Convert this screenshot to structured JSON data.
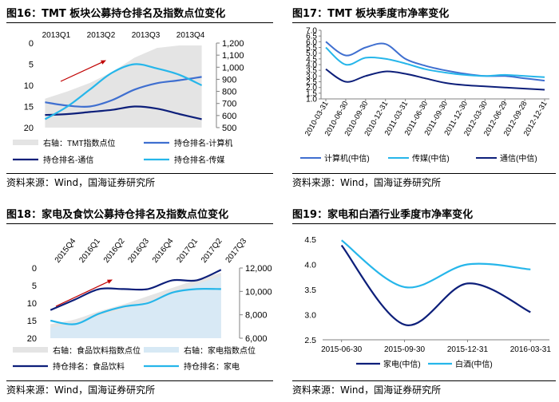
{
  "colors": {
    "dark_navy": "#0d1f7a",
    "blue": "#3f6fd0",
    "light_blue": "#26b6ea",
    "gray_fill": "#e4e4e4",
    "light_fill": "#d7e9f5",
    "arrow_red": "#c00000"
  },
  "source_text": "资料来源：Wind，国海证券研究所",
  "panels": [
    {
      "title": "图16：TMT 板块公募持仓排名及指数点位变化",
      "chart_data": {
        "type": "line",
        "x_labels": [
          "2013Q1",
          "2013Q2",
          "2013Q3",
          "2013Q4"
        ],
        "x": [
          0,
          1,
          2,
          3,
          4,
          5,
          6,
          7
        ],
        "ylim_left": [
          20,
          0
        ],
        "left_ticks": [
          "0",
          "5",
          "10",
          "15",
          "20"
        ],
        "ylim_right": [
          500,
          1200
        ],
        "right_ticks": [
          "500",
          "600",
          "700",
          "800",
          "900",
          "1,000",
          "1,100",
          "1,200"
        ],
        "area_series": {
          "name": "右轴：TMT指数点位",
          "values": [
            740,
            800,
            870,
            960,
            1080,
            1160,
            1180,
            1180
          ]
        },
        "series": [
          {
            "name": "持仓排名-计算机",
            "color_key": "blue",
            "values": [
              14,
              14.8,
              15,
              13.5,
              11,
              9.5,
              8.8,
              8
            ]
          },
          {
            "name": "持仓排名-通信",
            "color_key": "dark_navy",
            "values": [
              17,
              16.8,
              16.3,
              15.8,
              15,
              15.5,
              16.8,
              18
            ]
          },
          {
            "name": "持仓排名-传媒",
            "color_key": "light_blue",
            "values": [
              18,
              15,
              11,
              7,
              5,
              6,
              7.5,
              10
            ]
          }
        ]
      },
      "legend": [
        "右轴：TMT指数点位",
        "持仓排名-计算机",
        "持仓排名-通信",
        "持仓排名-传媒"
      ]
    },
    {
      "title": "图17：TMT 板块季度市净率变化",
      "chart_data": {
        "type": "line",
        "categories": [
          "2010-03-31",
          "2010-06-30",
          "2010-09-30",
          "2010-12-31",
          "2011-03-31",
          "2011-06-30",
          "2011-09-30",
          "2011-12-30",
          "2012-03-30",
          "2012-06-29",
          "2012-09-28",
          "2012-12-31"
        ],
        "ylim": [
          1.0,
          7.0
        ],
        "y_ticks": [
          "1.0",
          "1.5",
          "2.0",
          "2.5",
          "3.0",
          "3.5",
          "4.0",
          "4.5",
          "5.0",
          "5.5",
          "6.0",
          "6.5",
          "7.0"
        ],
        "series": [
          {
            "name": "计算机(中信)",
            "color_key": "blue",
            "values": [
              6.0,
              4.8,
              5.5,
              5.8,
              4.5,
              3.9,
              3.5,
              3.2,
              3.0,
              3.0,
              2.8,
              2.6
            ]
          },
          {
            "name": "传媒(中信)",
            "color_key": "light_blue",
            "values": [
              5.5,
              4.0,
              4.6,
              4.5,
              4.1,
              3.6,
              3.3,
              3.1,
              3.0,
              3.1,
              3.0,
              2.9
            ]
          },
          {
            "name": "通信(中信)",
            "color_key": "dark_navy",
            "values": [
              3.6,
              2.5,
              3.0,
              3.4,
              3.2,
              2.8,
              2.4,
              2.2,
              2.1,
              2.0,
              1.9,
              1.8
            ]
          }
        ]
      }
    },
    {
      "title": "图18：家电及食饮公募持仓排名及指数点位变化",
      "chart_data": {
        "type": "line",
        "x_labels": [
          "2015Q4",
          "2016Q1",
          "2016Q2",
          "2016Q3",
          "2016Q4",
          "2017Q1",
          "2017Q2",
          "2017Q3"
        ],
        "x": [
          0,
          1,
          2,
          3,
          4,
          5,
          6,
          7
        ],
        "ylim_left": [
          20,
          0
        ],
        "left_ticks": [
          "0",
          "5",
          "10",
          "15",
          "20"
        ],
        "ylim_right": [
          6000,
          12000
        ],
        "right_ticks": [
          "6,000",
          "8,000",
          "10,000",
          "12,000"
        ],
        "area_series": [
          {
            "name": "右轴：食品饮料指数点位",
            "color_key": "gray_fill",
            "values": [
              7200,
              7600,
              8300,
              8900,
              9600,
              10300,
              11000,
              11600
            ]
          },
          {
            "name": "右轴：家电指数点位",
            "color_key": "light_fill",
            "values": [
              6900,
              7300,
              7900,
              8500,
              9100,
              9800,
              10600,
              11300
            ]
          }
        ],
        "series": [
          {
            "name": "持仓排名：食品饮料",
            "color_key": "dark_navy",
            "values": [
              12,
              9,
              6,
              6,
              6,
              3.5,
              3.5,
              0.5
            ]
          },
          {
            "name": "持仓排名：家电",
            "color_key": "light_blue",
            "values": [
              15,
              16,
              13,
              11,
              10,
              7,
              6,
              6
            ]
          }
        ]
      },
      "legend": [
        "右轴：食品饮料指数点位",
        "右轴：家电指数点位",
        "持仓排名：食品饮料",
        "持仓排名：家电"
      ]
    },
    {
      "title": "图19：家电和白酒行业季度市净率变化",
      "chart_data": {
        "type": "line",
        "categories": [
          "2015-06-30",
          "2015-09-30",
          "2015-12-31",
          "2016-03-31"
        ],
        "ylim": [
          2.5,
          4.5
        ],
        "y_ticks": [
          "2.5",
          "3.0",
          "3.5",
          "4.0",
          "4.5"
        ],
        "series": [
          {
            "name": "家电(中信)",
            "color_key": "dark_navy",
            "values": [
              4.38,
              2.8,
              3.62,
              3.05
            ]
          },
          {
            "name": "白酒(中信)",
            "color_key": "light_blue",
            "values": [
              4.48,
              3.55,
              4.0,
              3.9
            ]
          }
        ]
      }
    }
  ]
}
